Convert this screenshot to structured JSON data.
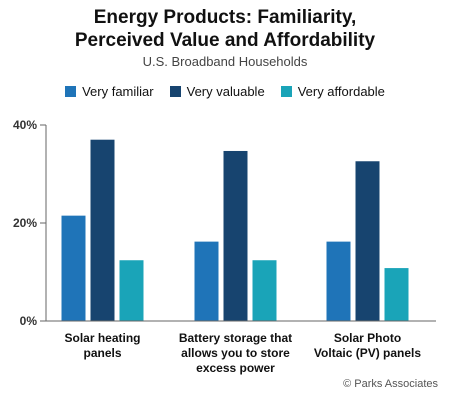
{
  "chart_data": {
    "type": "bar",
    "title_lines": [
      "Energy Products: Familiarity,",
      "Perceived Value and Affordability"
    ],
    "subtitle": "U.S. Broadband Households",
    "categories": [
      [
        "Solar heating",
        "panels"
      ],
      [
        "Battery storage that",
        "allows you to store",
        "excess power"
      ],
      [
        "Solar Photo",
        "Voltaic (PV) panels"
      ]
    ],
    "series": [
      {
        "name": "Very familiar",
        "color": "#1f74b8",
        "values": [
          21.5,
          16.2,
          16.2
        ]
      },
      {
        "name": "Very valuable",
        "color": "#17446f",
        "values": [
          37.0,
          34.7,
          32.6
        ]
      },
      {
        "name": "Very affordable",
        "color": "#1aa4b8",
        "values": [
          12.4,
          12.4,
          10.8
        ]
      }
    ],
    "ylim": [
      0,
      40
    ],
    "yticks": [
      {
        "value": 0,
        "label": "0%"
      },
      {
        "value": 20,
        "label": "20%"
      },
      {
        "value": 40,
        "label": "40%"
      }
    ],
    "grid": false,
    "legend_position": "top"
  },
  "credit": "© Parks Associates"
}
